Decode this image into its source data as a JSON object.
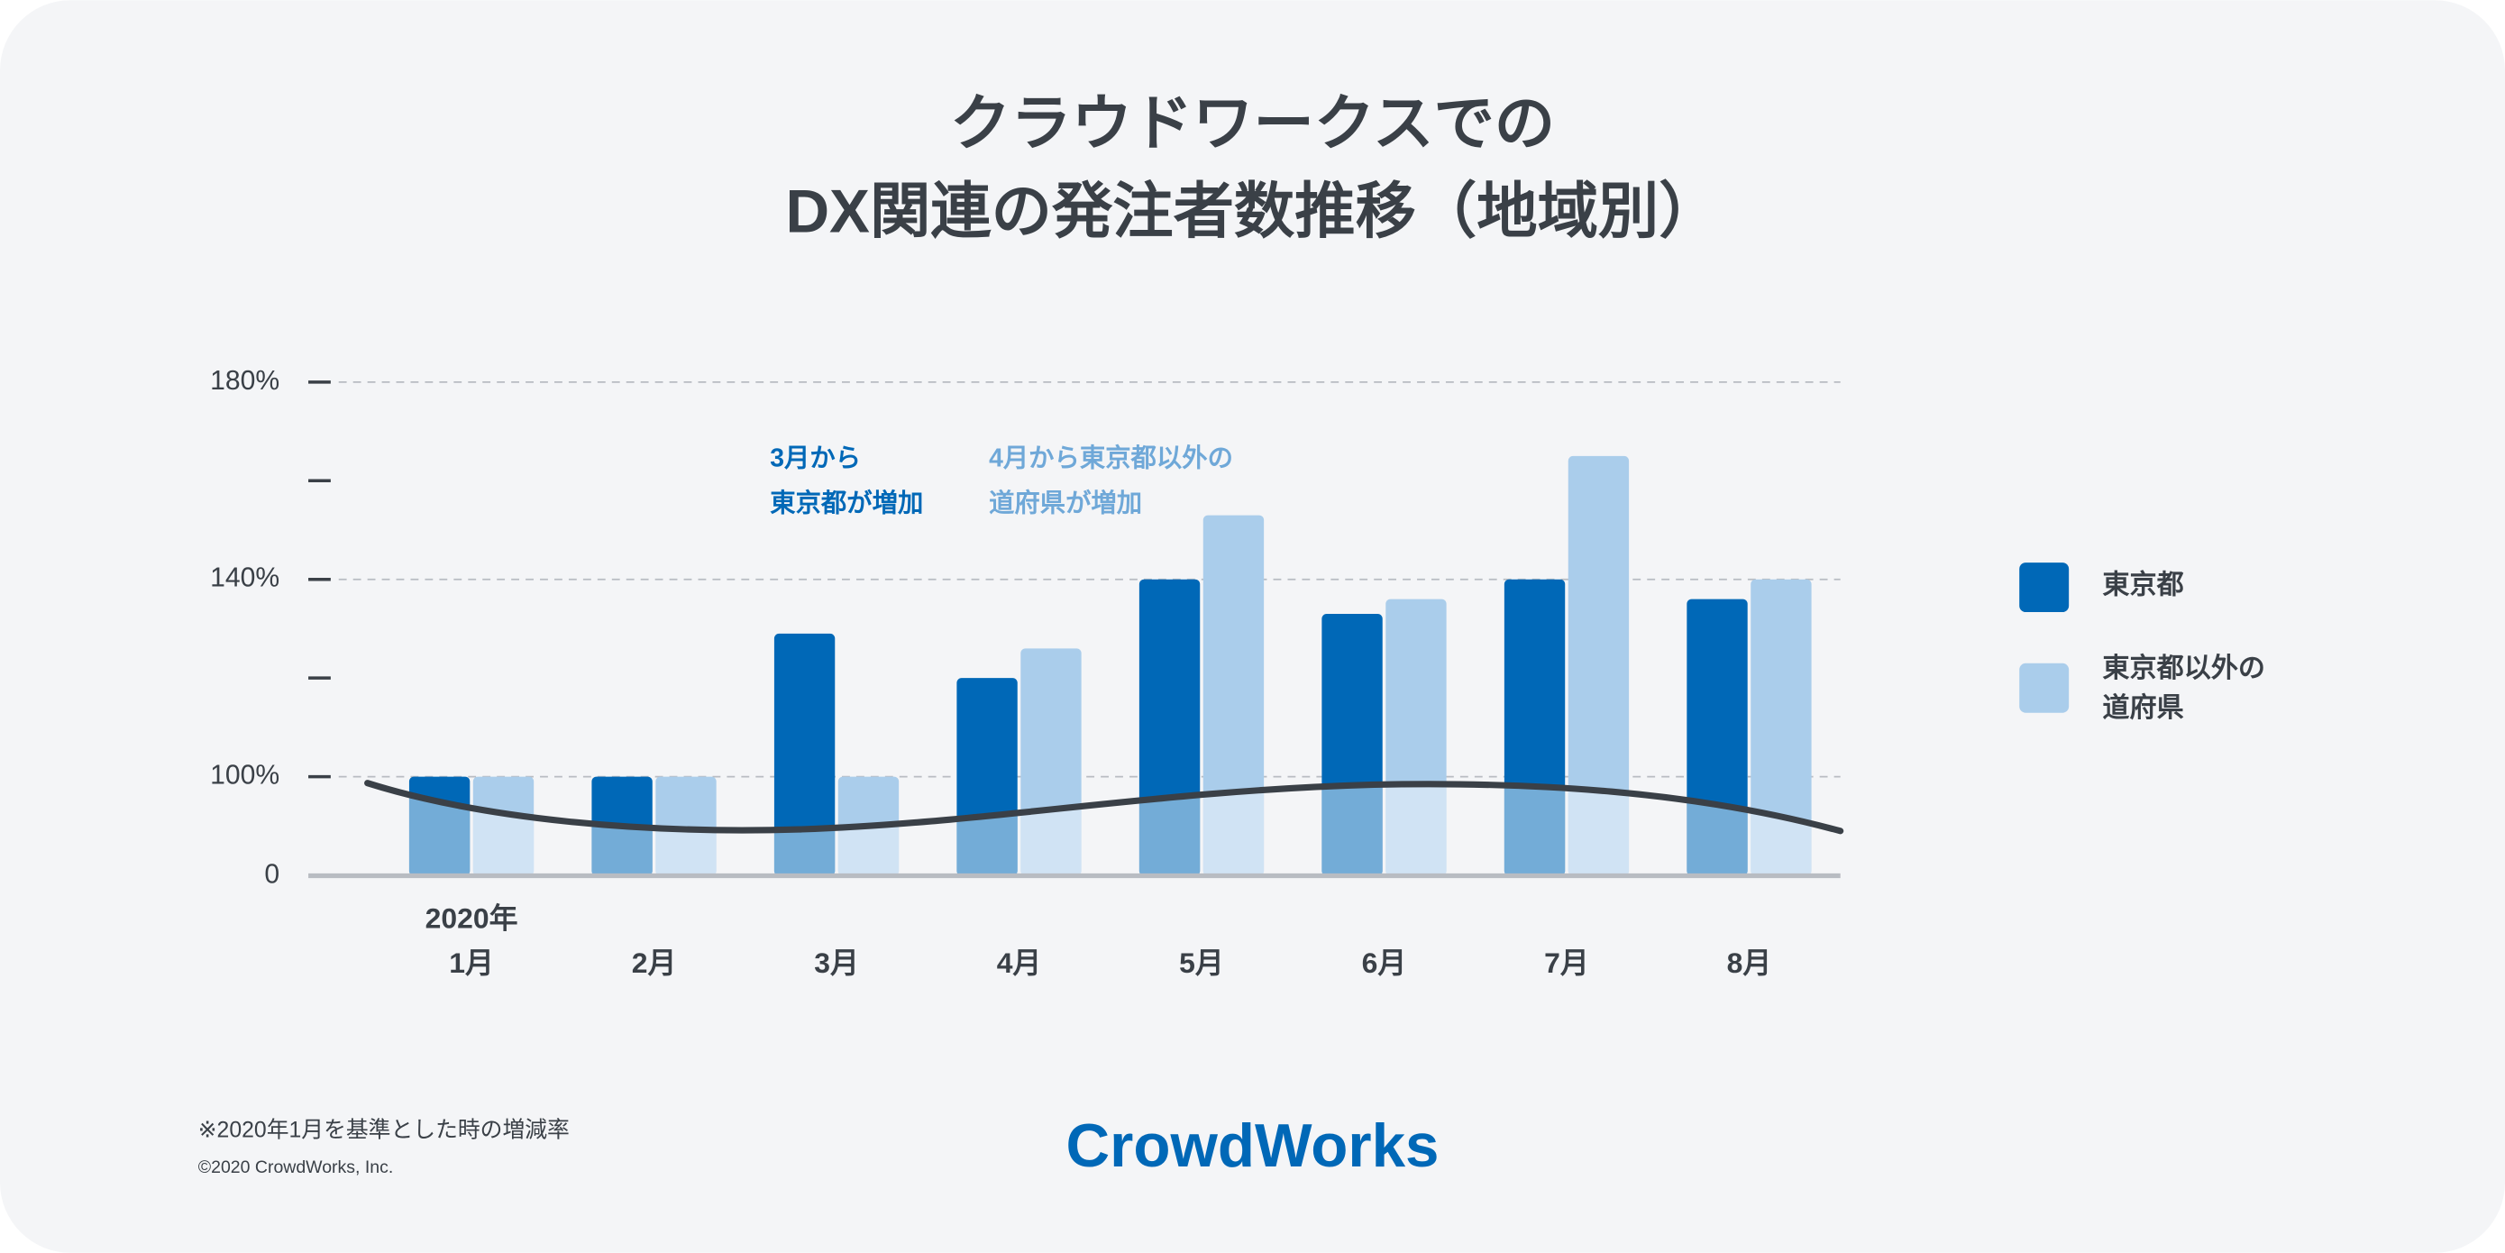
{
  "chart_data": {
    "type": "bar",
    "title": "クラウドワークスでの\nDX関連の発注者数推移（地域別）",
    "year_label": "2020年",
    "categories": [
      "1月",
      "2月",
      "3月",
      "4月",
      "5月",
      "6月",
      "7月",
      "8月"
    ],
    "series": [
      {
        "name": "東京都",
        "color": "#0068b7",
        "values": [
          100,
          100,
          129,
          120,
          140,
          133,
          140,
          136
        ]
      },
      {
        "name": "東京都以外の\n道府県",
        "color": "#aacdeb",
        "values": [
          100,
          100,
          100,
          126,
          153,
          136,
          165,
          140
        ]
      }
    ],
    "ylim": [
      0,
      180
    ],
    "axis_break": [
      0,
      100
    ],
    "yticks": [
      0,
      {
        "value": 100,
        "label": "100%"
      },
      {
        "value": 140,
        "label": "140%"
      },
      {
        "value": 180,
        "label": "180%"
      }
    ],
    "minor_yticks": [
      120,
      160
    ],
    "grid": true,
    "legend": "right",
    "annotations": [
      {
        "text": "3月から\n東京都が増加",
        "color": "#0068b7"
      },
      {
        "text": "4月から東京都以外の\n道府県が増加",
        "color": "#6fa8d8"
      }
    ],
    "footnote": "※2020年1月を基準とした時の増減率",
    "copyright": "©2020 CrowdWorks, Inc.",
    "logo": "CrowdWorks"
  }
}
